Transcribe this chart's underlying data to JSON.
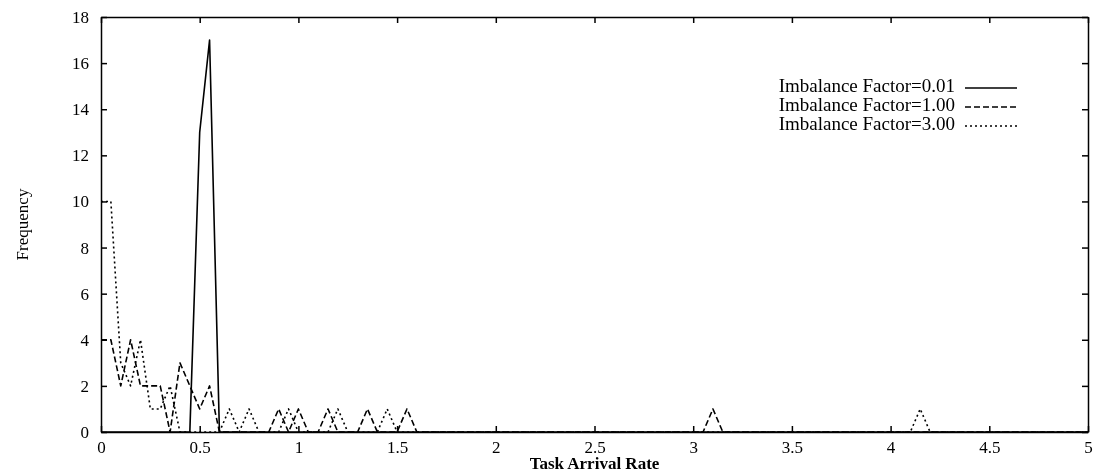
{
  "chart_data": {
    "type": "line",
    "xlabel": "Task Arrival Rate",
    "ylabel": "Frequency",
    "xlim": [
      0,
      5
    ],
    "ylim": [
      0,
      18
    ],
    "xticks": [
      0,
      0.5,
      1,
      1.5,
      2,
      2.5,
      3,
      3.5,
      4,
      4.5,
      5
    ],
    "yticks": [
      0,
      2,
      4,
      6,
      8,
      10,
      12,
      14,
      16,
      18
    ],
    "legend": "top right",
    "grid": false,
    "marker": "none",
    "series": [
      {
        "name": "Imbalance Factor=0.01",
        "color": "#000000",
        "line_style": "solid",
        "x": [
          0,
          0.45,
          0.5,
          0.55,
          0.6,
          5
        ],
        "values": [
          0,
          0,
          13,
          17,
          0,
          0
        ]
      },
      {
        "name": "Imbalance Factor=1.00",
        "color": "#000000",
        "line_style": "dashed",
        "x": [
          0,
          0.05,
          0.1,
          0.15,
          0.2,
          0.25,
          0.3,
          0.35,
          0.4,
          0.45,
          0.5,
          0.55,
          0.6,
          0.85,
          0.9,
          0.95,
          1.0,
          1.05,
          1.1,
          1.15,
          1.2,
          1.3,
          1.35,
          1.4,
          1.5,
          1.55,
          1.6,
          3.05,
          3.1,
          3.15,
          5
        ],
        "values": [
          4,
          4,
          2,
          4,
          2,
          2,
          2,
          0,
          3,
          2,
          1,
          2,
          0,
          0,
          1,
          0,
          1,
          0,
          0,
          1,
          0,
          0,
          1,
          0,
          0,
          1,
          0,
          0,
          1,
          0,
          0
        ]
      },
      {
        "name": "Imbalance Factor=3.00",
        "color": "#000000",
        "line_style": "dotted",
        "x": [
          0,
          0.05,
          0.1,
          0.15,
          0.2,
          0.25,
          0.3,
          0.35,
          0.4,
          0.6,
          0.65,
          0.7,
          0.75,
          0.8,
          0.9,
          0.95,
          1.0,
          1.15,
          1.2,
          1.25,
          1.4,
          1.45,
          1.5,
          4.1,
          4.15,
          4.2,
          5
        ],
        "values": [
          10,
          10,
          3,
          2,
          4,
          1,
          1,
          2,
          0,
          0,
          1,
          0,
          1,
          0,
          0,
          1,
          0,
          0,
          1,
          0,
          0,
          1,
          0,
          0,
          1,
          0,
          0
        ]
      }
    ]
  }
}
